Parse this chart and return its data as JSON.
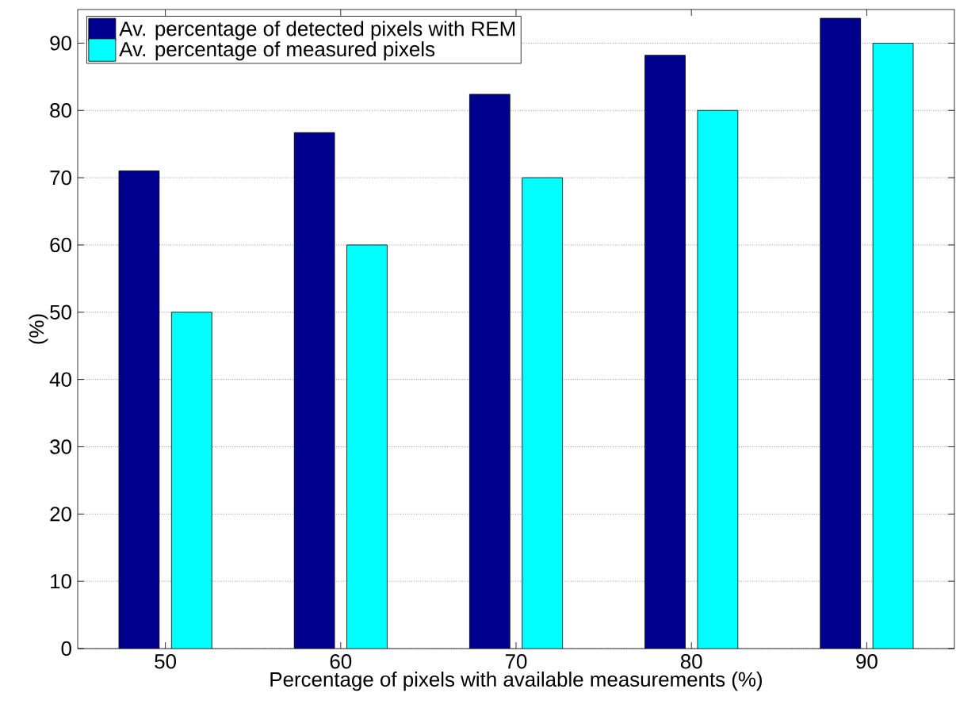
{
  "chart_data": {
    "type": "bar",
    "xlabel": "Percentage of pixels with available measurements (%)",
    "ylabel": "(%)",
    "categories": [
      "50",
      "60",
      "70",
      "80",
      "90"
    ],
    "series": [
      {
        "name": "Av. percentage of detected pixels with REM",
        "color": "#00008f",
        "values": [
          71.0,
          76.7,
          82.4,
          88.2,
          93.7
        ]
      },
      {
        "name": "Av. percentage of measured pixels",
        "color": "#00ffff",
        "values": [
          50,
          60,
          70,
          80,
          90
        ]
      }
    ],
    "ylim": [
      0,
      95
    ],
    "yticks": [
      0,
      10,
      20,
      30,
      40,
      50,
      60,
      70,
      80,
      90
    ],
    "grid": "y",
    "legend": "top left"
  }
}
